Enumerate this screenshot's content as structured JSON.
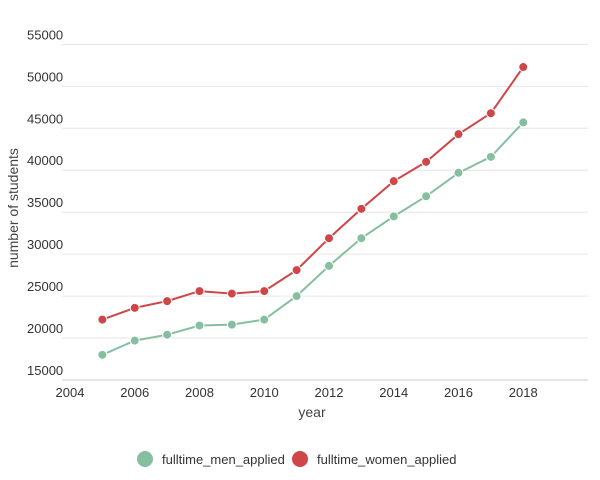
{
  "chart_data": {
    "type": "line",
    "title": "",
    "xlabel": "year",
    "ylabel": "number of students",
    "xlim": [
      2004,
      2020
    ],
    "ylim": [
      15000,
      56000
    ],
    "x_ticks": [
      "2004",
      "2006",
      "2008",
      "2010",
      "2012",
      "2014",
      "2016",
      "2018"
    ],
    "y_ticks": [
      "15000",
      "20000",
      "25000",
      "30000",
      "35000",
      "40000",
      "45000",
      "50000",
      "55000"
    ],
    "grid": "horizontal",
    "legend_position": "bottom",
    "x": [
      2005,
      2006,
      2007,
      2008,
      2009,
      2010,
      2011,
      2012,
      2013,
      2014,
      2015,
      2016,
      2017,
      2018
    ],
    "series": [
      {
        "name": "fulltime_men_applied",
        "color": "#86bf9f",
        "values": [
          18000,
          19700,
          20400,
          21500,
          21600,
          22200,
          25000,
          28600,
          31900,
          34500,
          36900,
          39700,
          41600,
          45700
        ]
      },
      {
        "name": "fulltime_women_applied",
        "color": "#d04548",
        "values": [
          22200,
          23600,
          24400,
          25600,
          25300,
          25600,
          28100,
          31900,
          35400,
          38700,
          41000,
          44300,
          46800,
          52300
        ]
      }
    ]
  }
}
